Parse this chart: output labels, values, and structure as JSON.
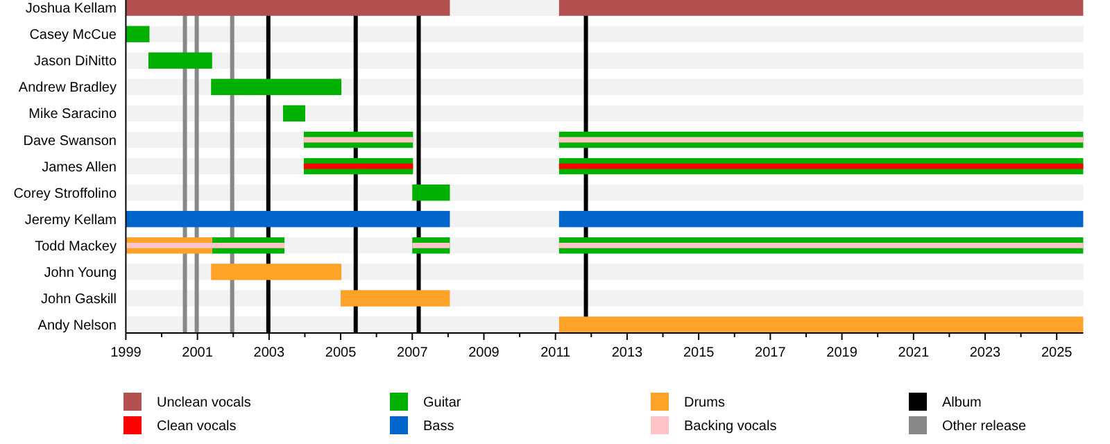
{
  "chart_data": {
    "type": "bar",
    "orientation": "horizontal",
    "legend": "bottom",
    "categories": [
      "Joshua Kellam",
      "Casey McCue",
      "Jason DiNitto",
      "Andrew Bradley",
      "Mike Saracino",
      "Dave Swanson",
      "James Allen",
      "Corey Stroffolino",
      "Jeremy Kellam",
      "Todd Mackey",
      "John Young",
      "John Gaskill",
      "Andy Nelson"
    ],
    "xlim": [
      1999,
      2025.74
    ],
    "xticks": [
      1999,
      {
        "value": 2000,
        "label": null
      },
      2001,
      {
        "value": 2002,
        "label": null
      },
      2003,
      {
        "value": 2004,
        "label": null
      },
      2005,
      {
        "value": 2006,
        "label": null
      },
      2007,
      {
        "value": 2008,
        "label": null
      },
      2009,
      {
        "value": 2010,
        "label": null
      },
      2011,
      {
        "value": 2012,
        "label": null
      },
      2013,
      {
        "value": 2014,
        "label": null
      },
      2015,
      {
        "value": 2016,
        "label": null
      },
      2017,
      {
        "value": 2018,
        "label": null
      },
      2019,
      {
        "value": 2020,
        "label": null
      },
      2021,
      {
        "value": 2022,
        "label": null
      },
      2023,
      {
        "value": 2024,
        "label": null
      },
      2025
    ],
    "series": [
      {
        "name": "Unclean vocals",
        "color": "#b35050",
        "base": [
          1999,
          null,
          null,
          null,
          null,
          null,
          null,
          null,
          null,
          null,
          null,
          null,
          null
        ],
        "values": [
          9.05,
          null,
          null,
          null,
          null,
          null,
          null,
          null,
          null,
          null,
          null,
          null,
          null
        ]
      },
      {
        "color": "#b35050",
        "base": [
          2011.1,
          null,
          null,
          null,
          null,
          null,
          null,
          null,
          null,
          null,
          null,
          null,
          null
        ],
        "values": [
          14.64,
          null,
          null,
          null,
          null,
          null,
          null,
          null,
          null,
          null,
          null,
          null,
          null
        ]
      },
      {
        "name": "Guitar",
        "color": "#00b000",
        "base": [
          null,
          1999,
          1999.63,
          2001.38,
          2003.39,
          2003.97,
          2003.97,
          2007.0,
          null,
          2001.41,
          null,
          null,
          null
        ],
        "values": [
          null,
          0.66,
          1.78,
          3.64,
          0.62,
          3.05,
          3.05,
          1.05,
          null,
          2.02,
          null,
          null,
          null
        ]
      },
      {
        "color": "#00b000",
        "base": [
          null,
          null,
          null,
          null,
          null,
          2011.1,
          2011.1,
          null,
          null,
          2007.0,
          null,
          null,
          null
        ],
        "values": [
          null,
          null,
          null,
          null,
          null,
          14.64,
          14.64,
          null,
          null,
          1.05,
          null,
          null,
          null
        ]
      },
      {
        "color": "#00b000",
        "base": [
          null,
          null,
          null,
          null,
          null,
          null,
          null,
          null,
          null,
          2011.1,
          null,
          null,
          null
        ],
        "values": [
          null,
          null,
          null,
          null,
          null,
          null,
          null,
          null,
          null,
          14.64,
          null,
          null,
          null
        ]
      },
      {
        "name": "Drums",
        "color": "#ffa227",
        "base": [
          null,
          null,
          null,
          null,
          null,
          null,
          null,
          null,
          null,
          1999,
          2001.38,
          2005.0,
          2011.1
        ],
        "values": [
          null,
          null,
          null,
          null,
          null,
          null,
          null,
          null,
          null,
          2.41,
          3.64,
          3.05,
          14.64
        ]
      },
      {
        "name": "Clean vocals",
        "color": "#ff0000",
        "base": [
          null,
          null,
          null,
          null,
          null,
          null,
          2003.97,
          null,
          null,
          null,
          null,
          null,
          null
        ],
        "values": [
          null,
          null,
          null,
          null,
          null,
          null,
          3.05,
          null,
          null,
          null,
          null,
          null,
          null
        ]
      },
      {
        "color": "#ff0000",
        "base": [
          null,
          null,
          null,
          null,
          null,
          null,
          2011.1,
          null,
          null,
          null,
          null,
          null,
          null
        ],
        "values": [
          null,
          null,
          null,
          null,
          null,
          null,
          14.64,
          null,
          null,
          null,
          null,
          null,
          null
        ]
      },
      {
        "name": "Bass",
        "color": "#0066cc",
        "base": [
          null,
          null,
          null,
          null,
          null,
          null,
          null,
          null,
          1999,
          null,
          null,
          null,
          null
        ],
        "values": [
          null,
          null,
          null,
          null,
          null,
          null,
          null,
          null,
          9.05,
          null,
          null,
          null,
          null
        ]
      },
      {
        "color": "#0066cc",
        "base": [
          null,
          null,
          null,
          null,
          null,
          null,
          null,
          null,
          2011.1,
          null,
          null,
          null,
          null
        ],
        "values": [
          null,
          null,
          null,
          null,
          null,
          null,
          null,
          null,
          14.64,
          null,
          null,
          null,
          null
        ]
      },
      {
        "name": "Backing vocals",
        "color": "#ffc4c8",
        "base": [
          null,
          null,
          null,
          null,
          null,
          2003.97,
          null,
          null,
          null,
          1999,
          null,
          null,
          null
        ],
        "values": [
          null,
          null,
          null,
          null,
          null,
          3.05,
          null,
          null,
          null,
          4.43,
          null,
          null,
          null
        ]
      },
      {
        "color": "#ffc4c8",
        "base": [
          null,
          null,
          null,
          null,
          null,
          2011.1,
          null,
          null,
          null,
          2007.0,
          null,
          null,
          null
        ],
        "values": [
          null,
          null,
          null,
          null,
          null,
          14.64,
          null,
          null,
          null,
          1.05,
          null,
          null,
          null
        ]
      },
      {
        "color": "#ffc4c8",
        "base": [
          null,
          null,
          null,
          null,
          null,
          null,
          null,
          null,
          null,
          2011.1,
          null,
          null,
          null
        ],
        "values": [
          null,
          null,
          null,
          null,
          null,
          null,
          null,
          null,
          null,
          14.64,
          null,
          null,
          null
        ]
      }
    ],
    "ref_lines": [
      {
        "axis": "x",
        "value": 2002.98,
        "label": "Album",
        "color": "#000000"
      },
      {
        "axis": "x",
        "value": 2005.42,
        "color": "#000000"
      },
      {
        "axis": "x",
        "value": 2007.18,
        "color": "#000000"
      },
      {
        "axis": "x",
        "value": 2011.85,
        "color": "#000000"
      },
      {
        "axis": "x",
        "value": 2000.65,
        "label": "Other release",
        "color": "#888888"
      },
      {
        "axis": "x",
        "value": 2000.98,
        "color": "#888888"
      },
      {
        "axis": "x",
        "value": 2001.97,
        "color": "#888888"
      }
    ]
  }
}
